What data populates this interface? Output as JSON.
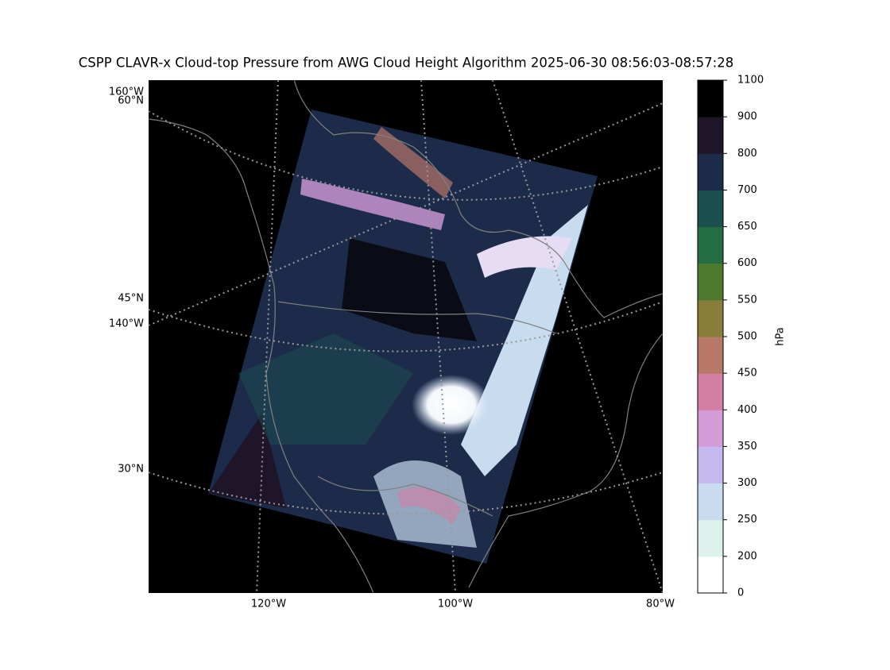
{
  "title": "CSPP CLAVR-x Cloud-top Pressure from AWG Cloud Height Algorithm 2025-06-30 08:56:03-08:57:28",
  "map": {
    "lon_labels_bottom": [
      "120°W",
      "100°W",
      "80°W"
    ],
    "left_labels": [
      "160°W",
      "60°N",
      "45°N",
      "140°W",
      "30°N"
    ]
  },
  "colorbar": {
    "label": "hPa",
    "ticks": [
      0,
      200,
      250,
      300,
      350,
      400,
      450,
      500,
      550,
      600,
      650,
      700,
      800,
      900,
      1100
    ],
    "colors": [
      "#ffffff",
      "#dcf1ec",
      "#c8dcf0",
      "#c4b8ee",
      "#d39bd8",
      "#d47ea4",
      "#b87868",
      "#8a7d3a",
      "#4e7a30",
      "#246c42",
      "#1b4f50",
      "#1d2b4a",
      "#1f1529",
      "#000000"
    ]
  }
}
